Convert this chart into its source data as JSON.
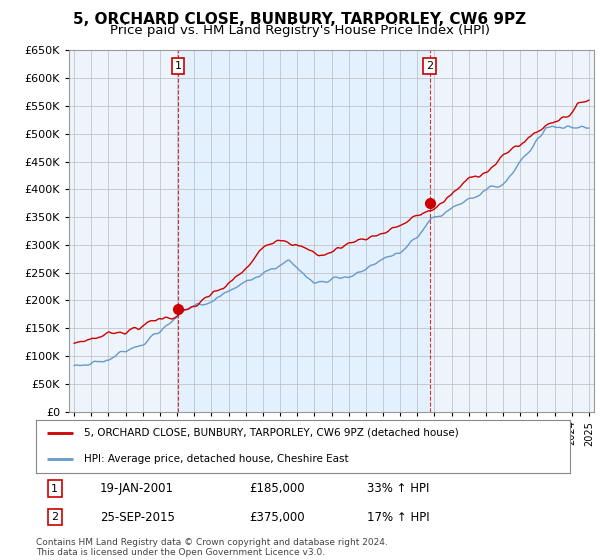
{
  "title": "5, ORCHARD CLOSE, BUNBURY, TARPORLEY, CW6 9PZ",
  "subtitle": "Price paid vs. HM Land Registry's House Price Index (HPI)",
  "ylim": [
    0,
    650000
  ],
  "yticks": [
    0,
    50000,
    100000,
    150000,
    200000,
    250000,
    300000,
    350000,
    400000,
    450000,
    500000,
    550000,
    600000,
    650000
  ],
  "xlim_start": 1994.7,
  "xlim_end": 2025.3,
  "background_color": "#ffffff",
  "plot_bg_color": "#eef4fb",
  "grid_color": "#bbbbbb",
  "property_color": "#cc0000",
  "hpi_color": "#6699cc",
  "vline_color": "#cc0000",
  "shade_color": "#ddeeff",
  "transaction1_x": 2001.05,
  "transaction1_y": 185000,
  "transaction2_x": 2015.73,
  "transaction2_y": 375000,
  "transaction1_date": "19-JAN-2001",
  "transaction1_price": 185000,
  "transaction1_hpi": "33% ↑ HPI",
  "transaction2_date": "25-SEP-2015",
  "transaction2_price": 375000,
  "transaction2_hpi": "17% ↑ HPI",
  "legend_property": "5, ORCHARD CLOSE, BUNBURY, TARPORLEY, CW6 9PZ (detached house)",
  "legend_hpi": "HPI: Average price, detached house, Cheshire East",
  "footnote": "Contains HM Land Registry data © Crown copyright and database right 2024.\nThis data is licensed under the Open Government Licence v3.0.",
  "title_fontsize": 11,
  "subtitle_fontsize": 9.5,
  "tick_fontsize": 8
}
